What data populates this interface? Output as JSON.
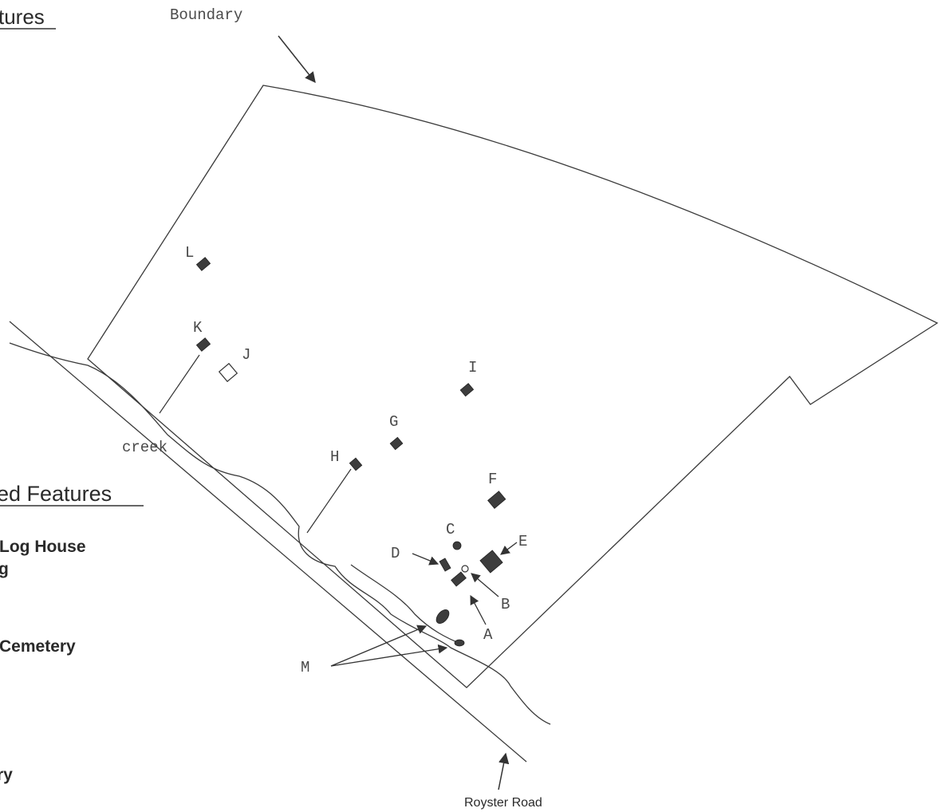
{
  "map": {
    "legend_top_heading": "tures",
    "legend_bottom_heading": "ed Features",
    "legend_items": [
      "Log House",
      "g",
      "Cemetery",
      "ry"
    ],
    "boundary_label": "Boundary",
    "creek_label": "creek",
    "road_label": "Royster Road",
    "feature_labels": [
      "A",
      "B",
      "C",
      "D",
      "E",
      "F",
      "G",
      "H",
      "I",
      "J",
      "K",
      "L",
      "M"
    ]
  }
}
